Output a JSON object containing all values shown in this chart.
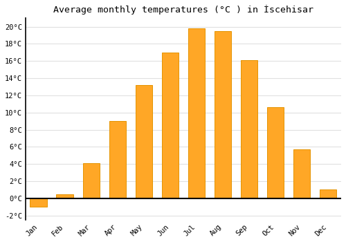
{
  "title": "Average monthly temperatures (°C ) in İscehisar",
  "months": [
    "Jan",
    "Feb",
    "Mar",
    "Apr",
    "May",
    "Jun",
    "Jul",
    "Aug",
    "Sep",
    "Oct",
    "Nov",
    "Dec"
  ],
  "values": [
    -1.0,
    0.5,
    4.1,
    9.0,
    13.2,
    17.0,
    19.8,
    19.5,
    16.1,
    10.6,
    5.7,
    1.0
  ],
  "bar_color": "#FFA726",
  "bar_edge_color": "#E59400",
  "ylim": [
    -2.5,
    21.0
  ],
  "yticks": [
    -2,
    0,
    2,
    4,
    6,
    8,
    10,
    12,
    14,
    16,
    18,
    20
  ],
  "ytick_labels": [
    "-2°C",
    "0°C",
    "2°C",
    "4°C",
    "6°C",
    "8°C",
    "10°C",
    "12°C",
    "14°C",
    "16°C",
    "18°C",
    "20°C"
  ],
  "grid_color": "#e0e0e0",
  "background_color": "#ffffff",
  "title_fontsize": 9.5,
  "tick_fontsize": 7.5,
  "font_family": "monospace",
  "bar_width": 0.65
}
